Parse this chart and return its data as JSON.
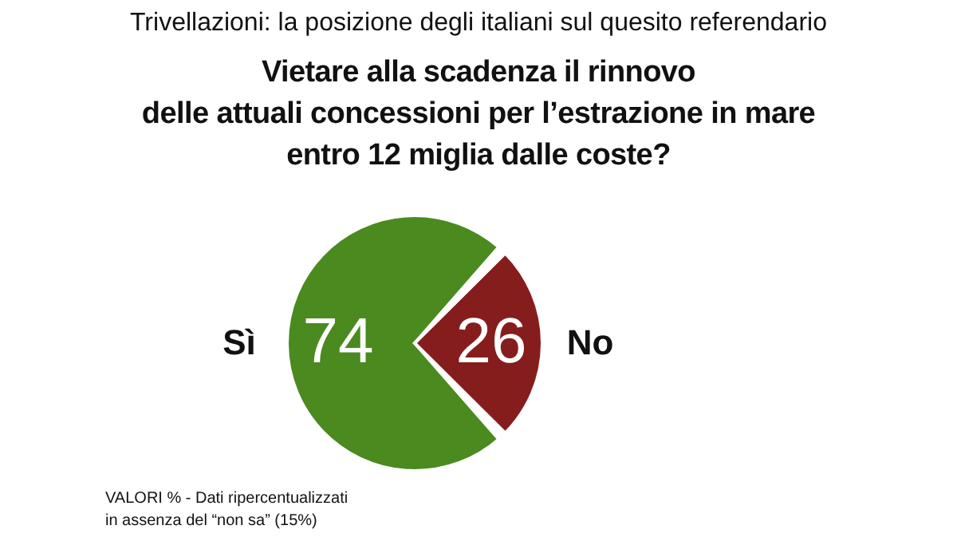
{
  "chart_data": {
    "type": "pie",
    "title": "Trivellazioni: la posizione degli italiani sul quesito referendario",
    "subtitle": "Vietare alla scadenza il rinnovo\ndelle attuali concessioni per l’estrazione in mare\nentro 12 miglia dalle coste?",
    "categories": [
      "Sì",
      "No"
    ],
    "values": [
      74,
      26
    ],
    "colors": [
      "#4a8a1f",
      "#861d1d"
    ],
    "data_labels": true,
    "annotations": [
      "VALORI % - Dati ripercentualizzati\nin assenza del “non sa” (15%)"
    ]
  }
}
